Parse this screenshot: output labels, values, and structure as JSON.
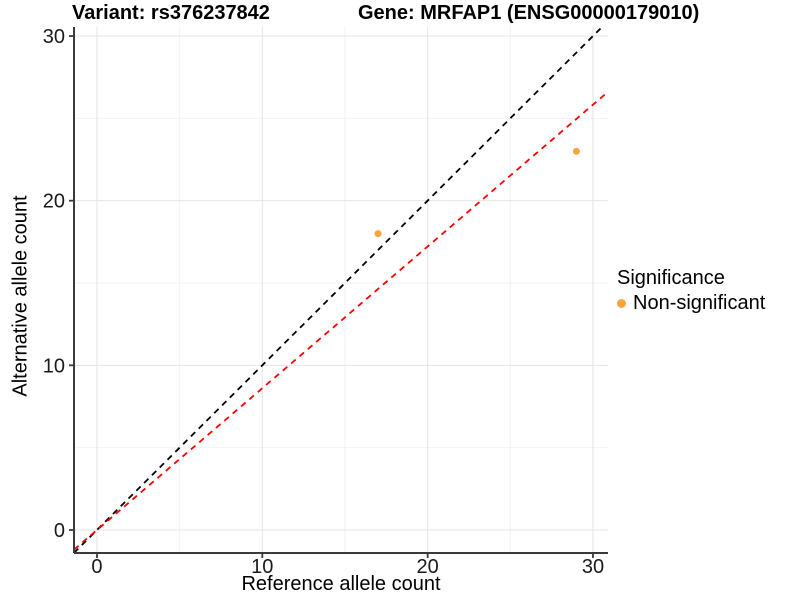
{
  "chart_data": {
    "type": "scatter",
    "title_variant": "Variant: rs376237842",
    "title_gene": "Gene: MRFAP1 (ENSG00000179010)",
    "xlabel": "Reference allele count",
    "ylabel": "Alternative allele count",
    "xlim": [
      -1.39,
      30.91
    ],
    "ylim": [
      -1.4,
      30.55
    ],
    "x_major_ticks": [
      0,
      10,
      20,
      30
    ],
    "y_major_ticks": [
      0,
      10,
      20,
      30
    ],
    "x_minor_ticks": [
      5,
      15,
      25
    ],
    "y_minor_ticks": [
      5,
      15,
      25
    ],
    "grid_major_color": "#E4E4E4",
    "grid_minor_color": "#F2F2F2",
    "axis_color": "#3A3A3A",
    "tick_label_color": "#1A1A1A",
    "point_color": "#F9A43F",
    "points": [
      {
        "x": 17,
        "y": 18,
        "series": "Non-significant"
      },
      {
        "x": 29,
        "y": 23,
        "series": "Non-significant"
      }
    ],
    "lines": [
      {
        "name": "identity-line",
        "slope": 1,
        "intercept": 0,
        "color": "#000000",
        "style": "dashed"
      },
      {
        "name": "fit-line",
        "slope": 0.861,
        "intercept": 0,
        "color": "#FF0000",
        "style": "dashed"
      }
    ],
    "legend": {
      "title": "Significance",
      "items": [
        {
          "label": "Non-significant",
          "color": "#F9A43F"
        }
      ]
    }
  }
}
